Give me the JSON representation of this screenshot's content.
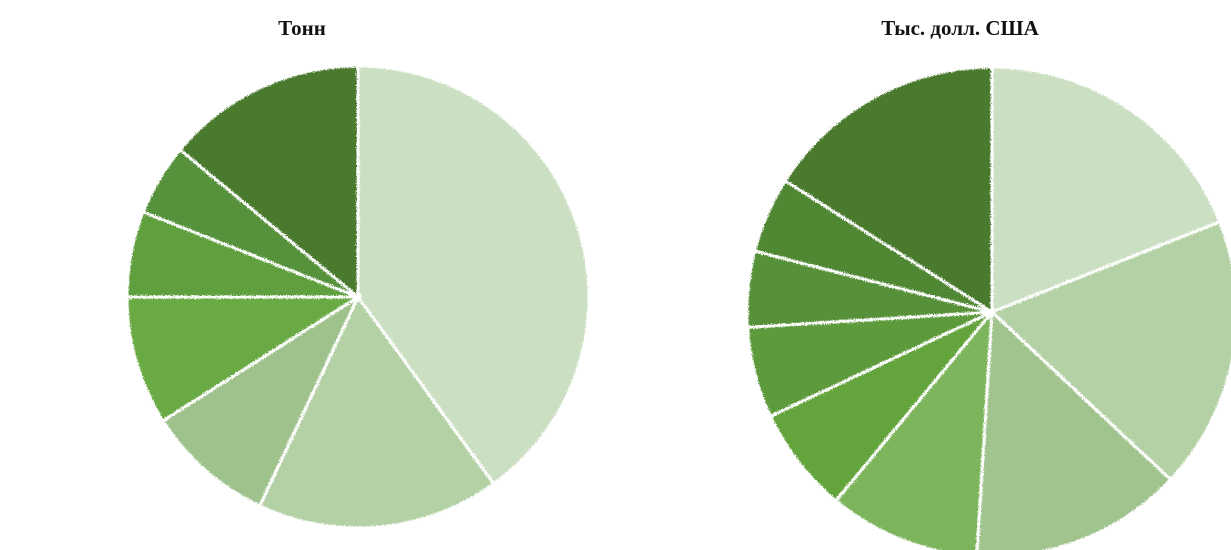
{
  "chart_data": [
    {
      "type": "pie",
      "title": "Тонн",
      "slices": [
        {
          "value": 40,
          "color": "#cbdfc2"
        },
        {
          "value": 17,
          "color": "#b4d1a6"
        },
        {
          "value": 9,
          "color": "#9fc28d"
        },
        {
          "value": 9,
          "color": "#6aaa45"
        },
        {
          "value": 6,
          "color": "#5e9f3c"
        },
        {
          "value": 5,
          "color": "#57923a"
        },
        {
          "value": 14,
          "color": "#4a7a2e"
        }
      ]
    },
    {
      "type": "pie",
      "title": "Тыс. долл. США",
      "slices": [
        {
          "value": 19,
          "color": "#cbdfc2"
        },
        {
          "value": 18,
          "color": "#b4d1a6"
        },
        {
          "value": 14,
          "color": "#a1c48f"
        },
        {
          "value": 10,
          "color": "#7db55d"
        },
        {
          "value": 7,
          "color": "#64a43e"
        },
        {
          "value": 6,
          "color": "#5c9a3a"
        },
        {
          "value": 5,
          "color": "#569037"
        },
        {
          "value": 5,
          "color": "#508732"
        },
        {
          "value": 16,
          "color": "#4a7a2e"
        }
      ]
    }
  ]
}
